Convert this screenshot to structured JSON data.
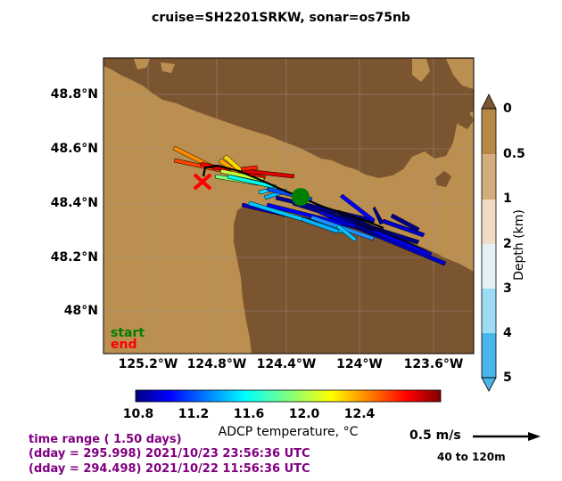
{
  "title": "cruise=SH2201SRKW,   sonar=os75nb",
  "map": {
    "lat_ticks": [
      "48.8°N",
      "48.6°N",
      "48.4°N",
      "48.2°N",
      "48°N"
    ],
    "lon_ticks": [
      "125.2°W",
      "124.8°W",
      "124.4°W",
      "124°W",
      "123.6°W"
    ],
    "start_label": "start",
    "end_label": "end",
    "colors": {
      "land": "#7b5430",
      "shelf": "#bb8f4f",
      "start_marker": "#008000",
      "end_marker": "#ff0000"
    }
  },
  "depth_colorbar": {
    "label": "Depth (km)",
    "ticks": [
      "0",
      "0.5",
      "1",
      "2",
      "3",
      "4",
      "5"
    ],
    "colors": [
      "#b58845",
      "#d3ad7c",
      "#f0dcc4",
      "#e4f1f7",
      "#9ddcf5",
      "#4bb5e9"
    ]
  },
  "temp_colorbar": {
    "label": "ADCP temperature, °C",
    "ticks": [
      "10.8",
      "11.2",
      "11.6",
      "12.0",
      "12.4"
    ],
    "range": [
      10.7,
      12.9
    ]
  },
  "scale": {
    "label": "0.5 m/s",
    "depth_range": "40 to 120m"
  },
  "time_info": {
    "line1": "time range ( 1.50 days)",
    "line2": "(dday = 295.998) 2021/10/23 23:56:36 UTC",
    "line3": "(dday = 294.498) 2021/10/22 11:56:36 UTC"
  }
}
